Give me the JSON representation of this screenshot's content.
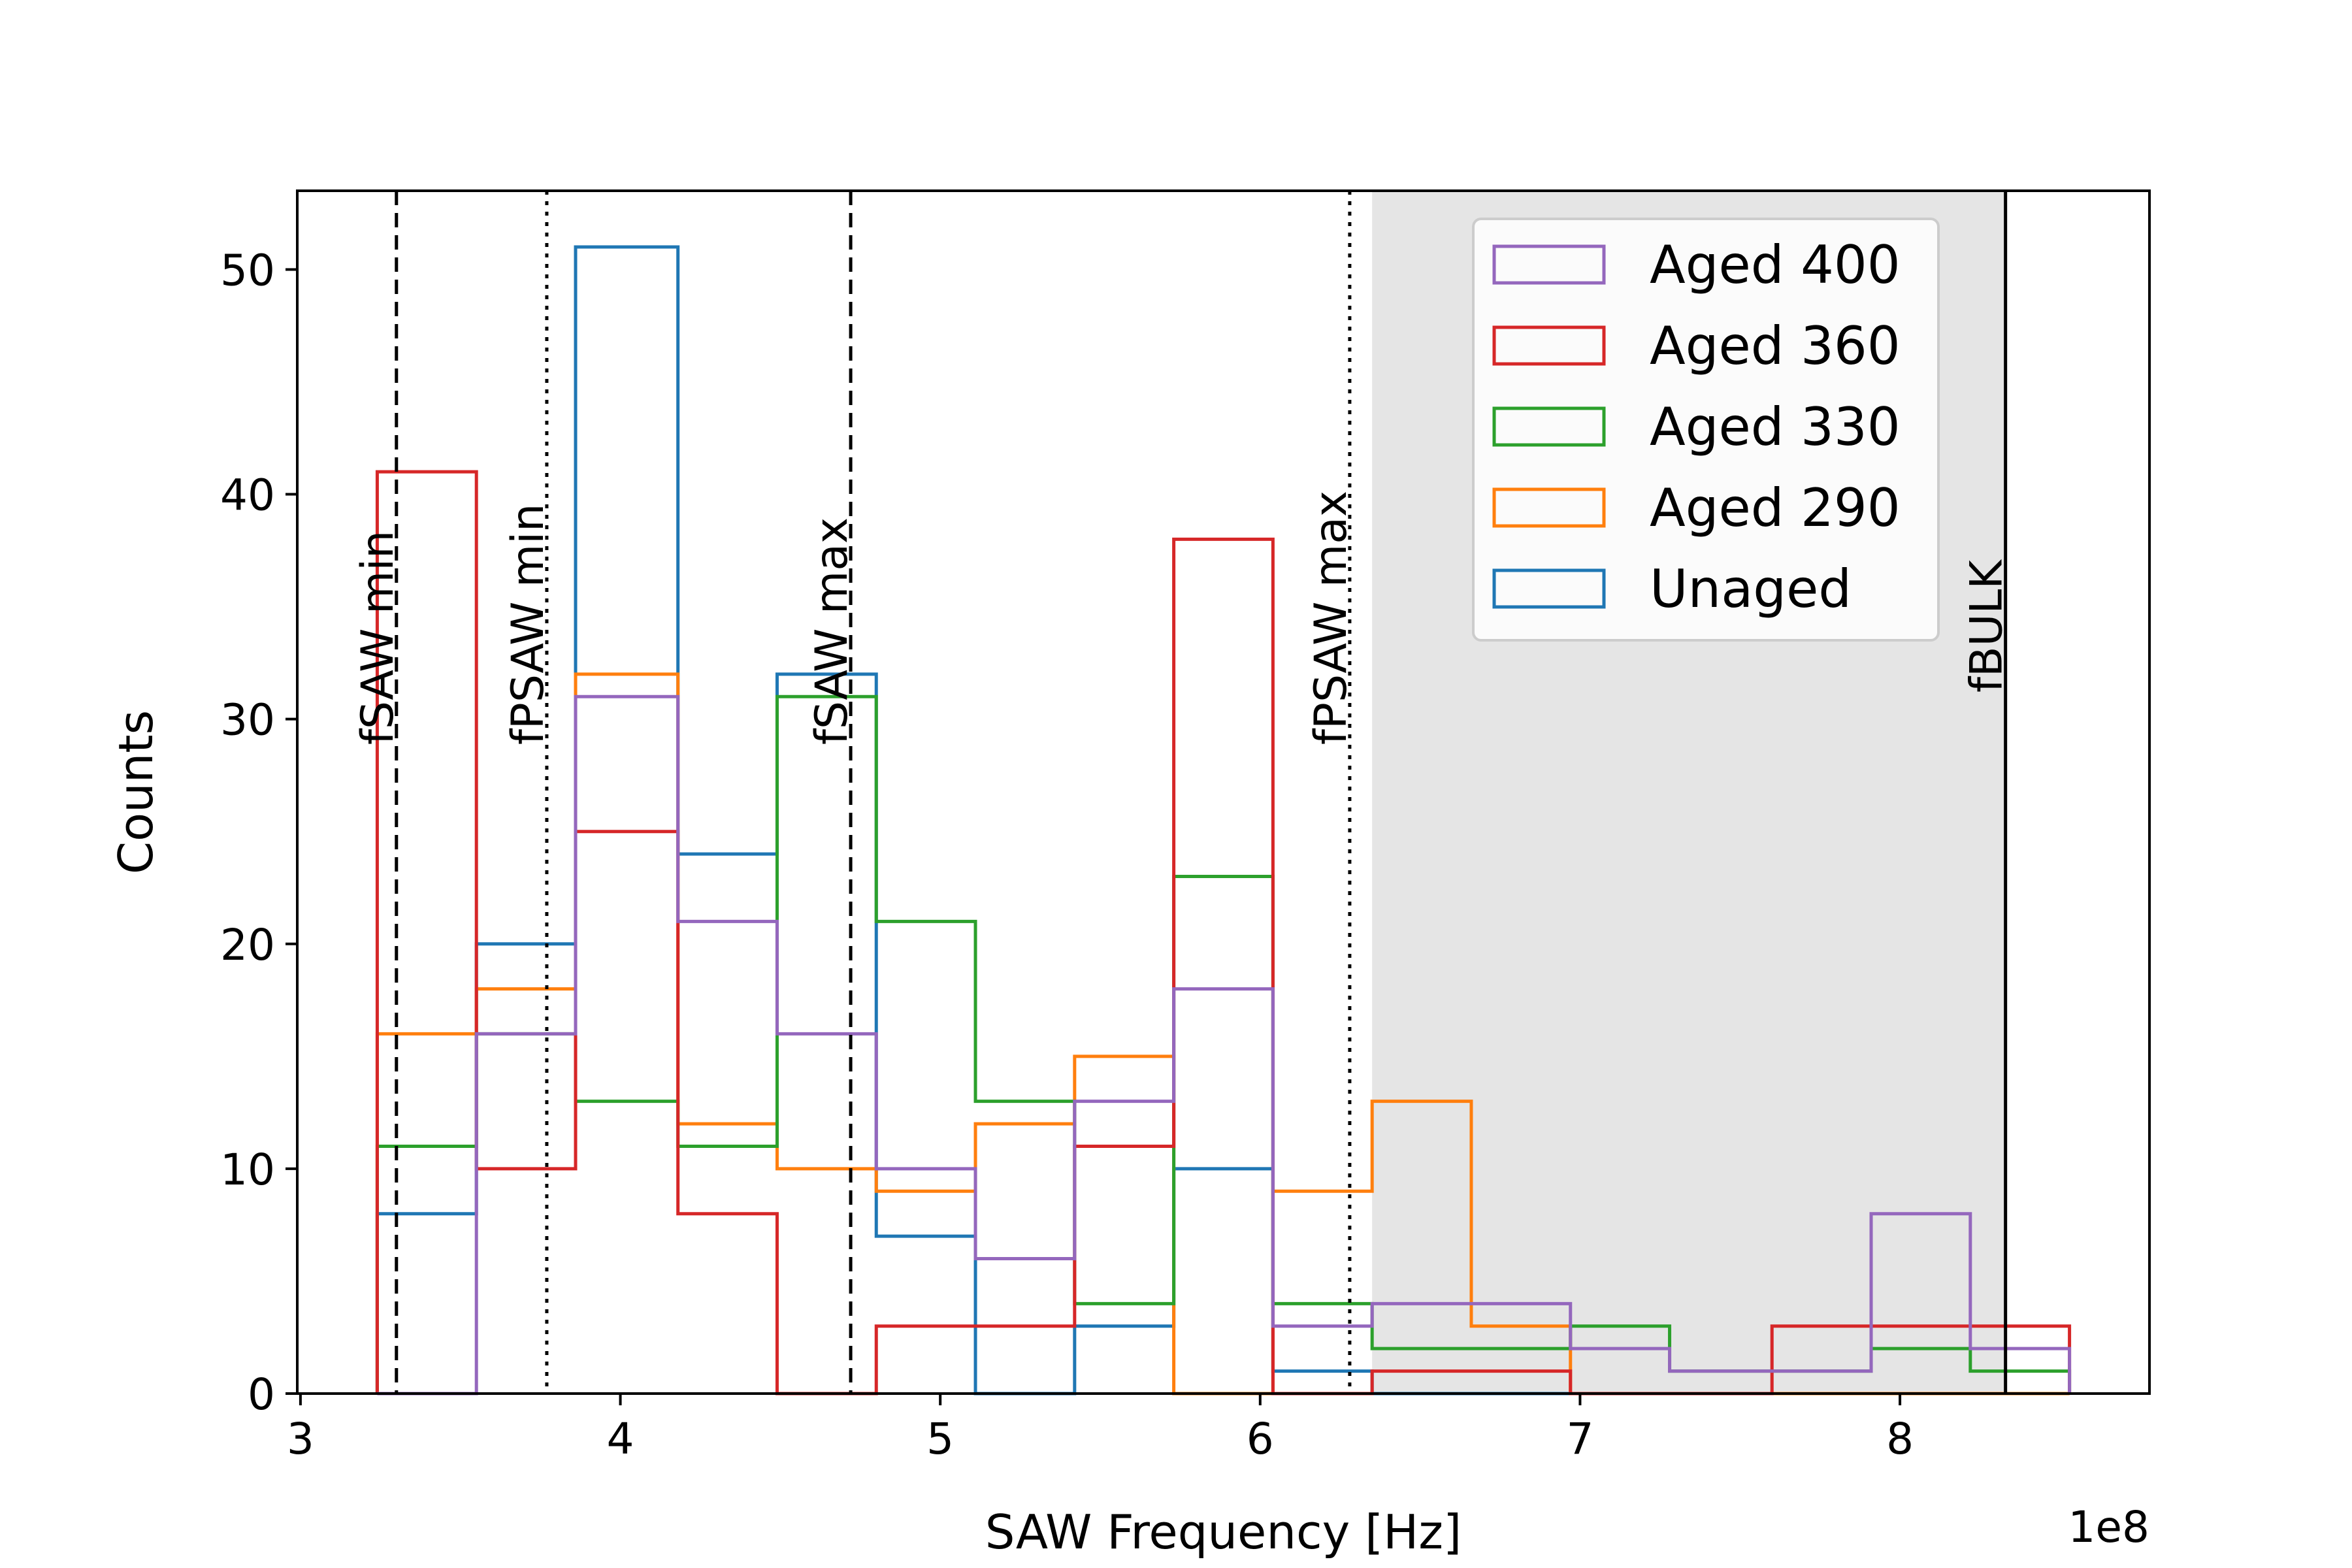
{
  "chart_data": {
    "type": "histogram-step",
    "xlabel": "SAW Frequency [Hz]",
    "ylabel": "Counts",
    "x_offset_label": "1e8",
    "xlim": [
      2.99,
      8.78
    ],
    "ylim": [
      0,
      53.5
    ],
    "x_ticks": [
      3,
      4,
      5,
      6,
      7,
      8
    ],
    "x_tick_labels": [
      "3",
      "4",
      "5",
      "6",
      "7",
      "8"
    ],
    "y_ticks": [
      0,
      10,
      20,
      30,
      40,
      50
    ],
    "y_tick_labels": [
      "0",
      "10",
      "20",
      "30",
      "40",
      "50"
    ],
    "bin_edges": [
      3.24,
      3.55,
      3.86,
      4.18,
      4.49,
      4.8,
      5.11,
      5.42,
      5.73,
      6.04,
      6.35,
      6.66,
      6.97,
      7.28,
      7.6,
      7.91,
      8.22,
      8.53
    ],
    "shaded_region": {
      "x0": 6.35,
      "x1": 8.33,
      "color": "#e5e5e5"
    },
    "vlines": [
      {
        "x": 3.3,
        "label": "fSAW min",
        "style": "dashed"
      },
      {
        "x": 3.77,
        "label": "fPSAW min",
        "style": "dotted"
      },
      {
        "x": 4.72,
        "label": "fSAW max",
        "style": "dashed"
      },
      {
        "x": 6.28,
        "label": "fPSAW max",
        "style": "dotted"
      },
      {
        "x": 8.33,
        "label": "fBULK",
        "style": "solid"
      }
    ],
    "series": [
      {
        "name": "Aged 400",
        "color": "#9467bd",
        "values": [
          0,
          16,
          31,
          21,
          16,
          10,
          6,
          13,
          18,
          3,
          4,
          4,
          2,
          1,
          1,
          8,
          2
        ]
      },
      {
        "name": "Aged 360",
        "color": "#d62728",
        "values": [
          41,
          10,
          25,
          8,
          0,
          3,
          3,
          11,
          38,
          0,
          1,
          1,
          0,
          0,
          3,
          3,
          3
        ]
      },
      {
        "name": "Aged 330",
        "color": "#2ca02c",
        "values": [
          11,
          16,
          13,
          11,
          31,
          21,
          13,
          4,
          23,
          4,
          2,
          2,
          3,
          1,
          1,
          2,
          1
        ]
      },
      {
        "name": "Aged 290",
        "color": "#ff7f0e",
        "values": [
          16,
          18,
          32,
          12,
          10,
          9,
          12,
          15,
          0,
          9,
          13,
          3,
          0,
          0,
          0,
          0,
          0
        ]
      },
      {
        "name": "Unaged",
        "color": "#1f77b4",
        "values": [
          8,
          20,
          51,
          24,
          32,
          7,
          0,
          3,
          10,
          1,
          0,
          0,
          0,
          0,
          0,
          0,
          0
        ]
      }
    ],
    "legend": {
      "position": "upper-right"
    }
  }
}
